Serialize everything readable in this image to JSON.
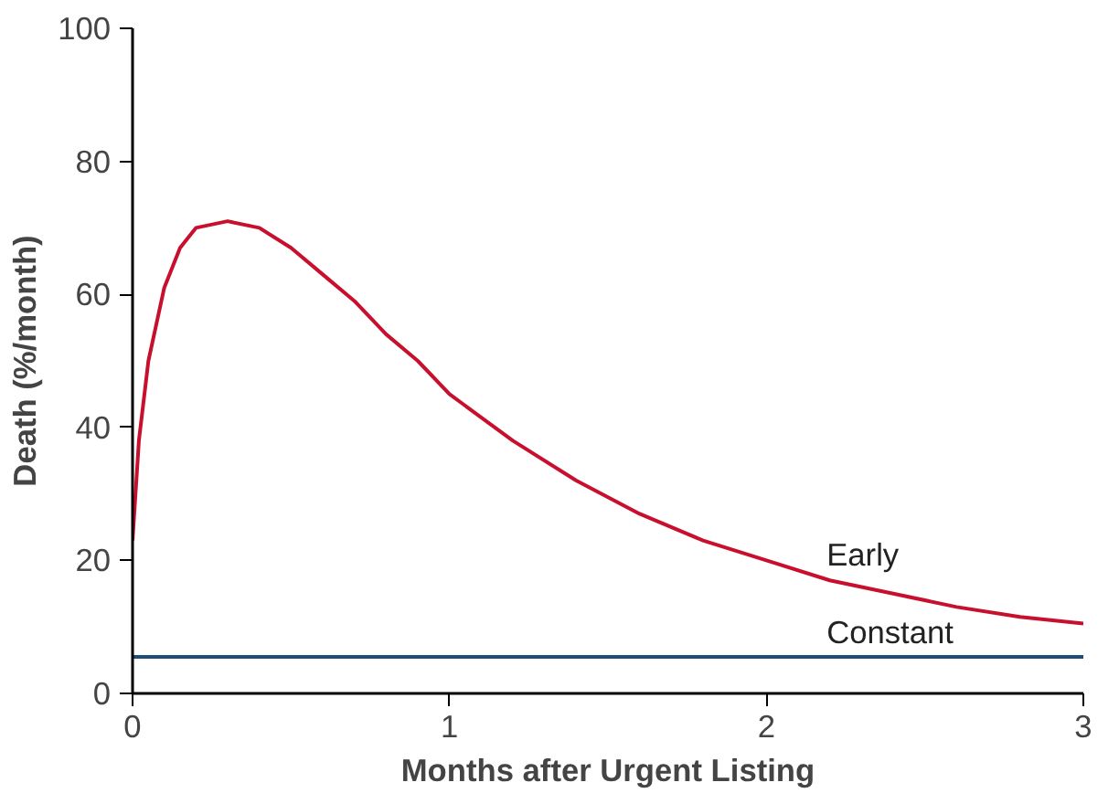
{
  "chart_data": {
    "type": "line",
    "xlabel": "Months after Urgent Listing",
    "ylabel": "Death (%/month)",
    "xlim": [
      0,
      3
    ],
    "ylim": [
      0,
      100
    ],
    "xticks": [
      0,
      1,
      2,
      3
    ],
    "yticks": [
      0,
      20,
      40,
      60,
      80,
      100
    ],
    "grid": false,
    "legend": false,
    "marker": "none",
    "line_style": "solid",
    "series": [
      {
        "name": "Early",
        "color": "#c8102e",
        "x": [
          0,
          0.02,
          0.05,
          0.1,
          0.15,
          0.2,
          0.3,
          0.4,
          0.5,
          0.6,
          0.7,
          0.8,
          0.9,
          1.0,
          1.2,
          1.4,
          1.6,
          1.8,
          2.0,
          2.2,
          2.4,
          2.6,
          2.8,
          3.0
        ],
        "values": [
          23,
          38,
          50,
          61,
          67,
          70,
          71,
          70,
          67,
          63,
          59,
          54,
          50,
          45,
          38,
          32,
          27,
          23,
          20,
          17,
          15,
          13,
          11.5,
          10.5
        ]
      },
      {
        "name": "Constant",
        "color": "#1f4e79",
        "x": [
          0,
          3
        ],
        "values": [
          5.5,
          5.5
        ]
      }
    ]
  }
}
